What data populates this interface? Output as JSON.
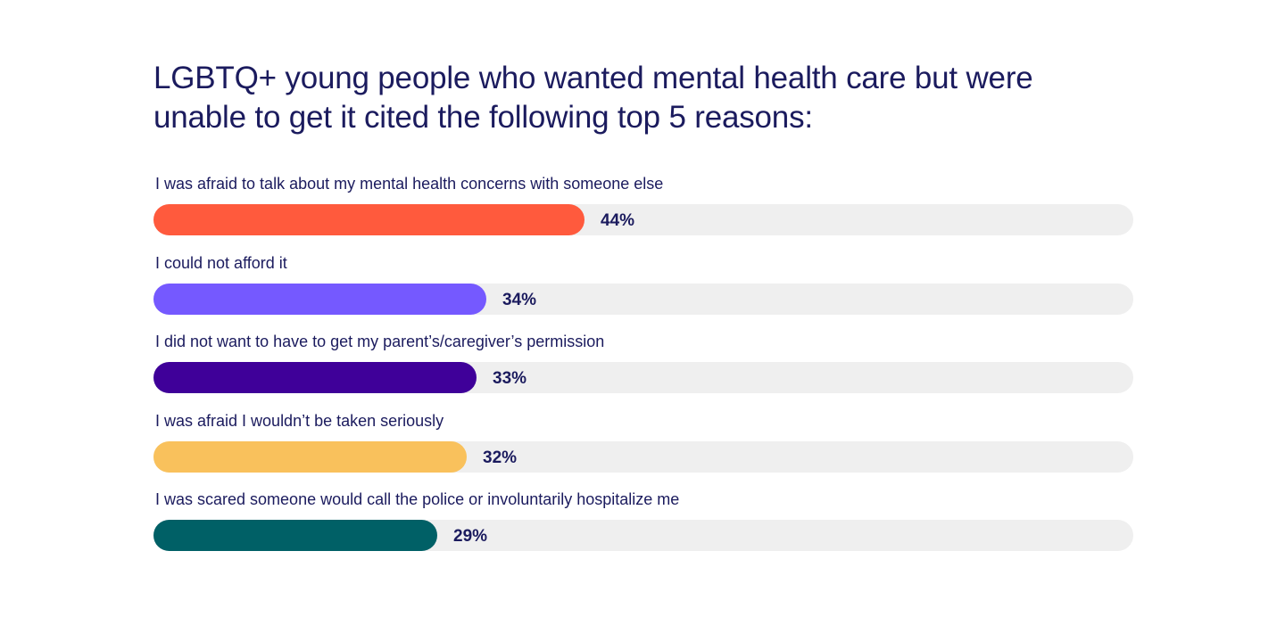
{
  "chart_data": {
    "type": "bar",
    "orientation": "horizontal",
    "title": "LGBTQ+ young people who wanted mental health care but were unable to get it cited the following top 5 reasons:",
    "categories": [
      "I was afraid to talk about my mental health concerns with someone else",
      "I could not afford it",
      "I did not want to have to get my parent’s/caregiver’s permission",
      "I was afraid I wouldn’t be taken seriously",
      "I was scared someone would call the police or involuntarily hospitalize me"
    ],
    "values": [
      44,
      34,
      33,
      32,
      29
    ],
    "value_labels": [
      "44%",
      "34%",
      "33%",
      "32%",
      "29%"
    ],
    "unit": "%",
    "xlim": [
      0,
      100
    ],
    "colors": [
      "#ff5a3d",
      "#7559ff",
      "#3f0099",
      "#f9c15c",
      "#006066"
    ],
    "track_color": "#efefef",
    "grid": false,
    "legend": "none"
  }
}
